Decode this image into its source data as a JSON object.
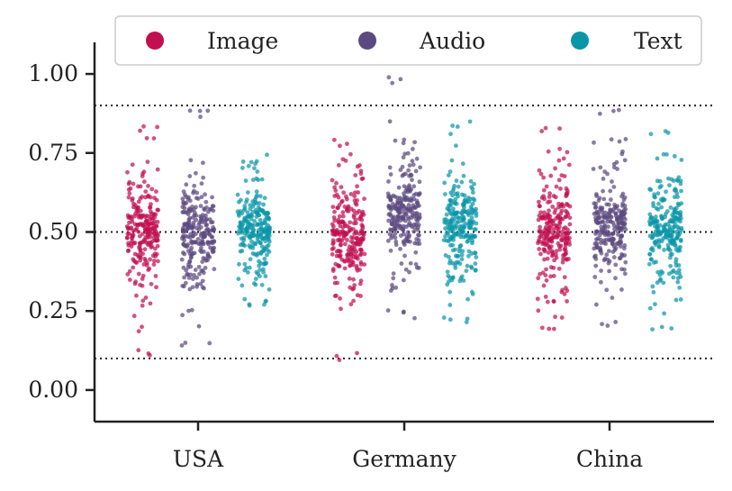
{
  "chart_data": {
    "type": "scatter",
    "subtype": "strip-plot",
    "title": "",
    "xlabel": "",
    "ylabel": "",
    "categories": [
      "USA",
      "Germany",
      "China"
    ],
    "ylim": [
      -0.1,
      1.1
    ],
    "yticks": [
      0.0,
      0.25,
      0.5,
      0.75,
      1.0
    ],
    "ytick_labels": [
      "0.00",
      "0.25",
      "0.50",
      "0.75",
      "1.00"
    ],
    "reference_lines": [
      0.1,
      0.5,
      0.9
    ],
    "grid": false,
    "legend": {
      "placement": "top-center",
      "orientation": "horizontal"
    },
    "series": [
      {
        "name": "Image",
        "color": "#c0104f",
        "groups": [
          {
            "category": "USA",
            "center": 0.5,
            "min": 0.1,
            "max": 0.85
          },
          {
            "category": "Germany",
            "center": 0.48,
            "min": 0.09,
            "max": 0.8
          },
          {
            "category": "China",
            "center": 0.5,
            "min": 0.18,
            "max": 0.83
          }
        ]
      },
      {
        "name": "Audio",
        "color": "#5b4a80",
        "groups": [
          {
            "category": "USA",
            "center": 0.5,
            "min": 0.13,
            "max": 0.89
          },
          {
            "category": "Germany",
            "center": 0.56,
            "min": 0.22,
            "max": 1.0
          },
          {
            "category": "China",
            "center": 0.52,
            "min": 0.2,
            "max": 0.9
          }
        ]
      },
      {
        "name": "Text",
        "color": "#0b95a8",
        "groups": [
          {
            "category": "USA",
            "center": 0.5,
            "min": 0.26,
            "max": 0.75
          },
          {
            "category": "Germany",
            "center": 0.52,
            "min": 0.2,
            "max": 0.85
          },
          {
            "category": "China",
            "center": 0.51,
            "min": 0.17,
            "max": 0.82
          }
        ]
      }
    ]
  }
}
